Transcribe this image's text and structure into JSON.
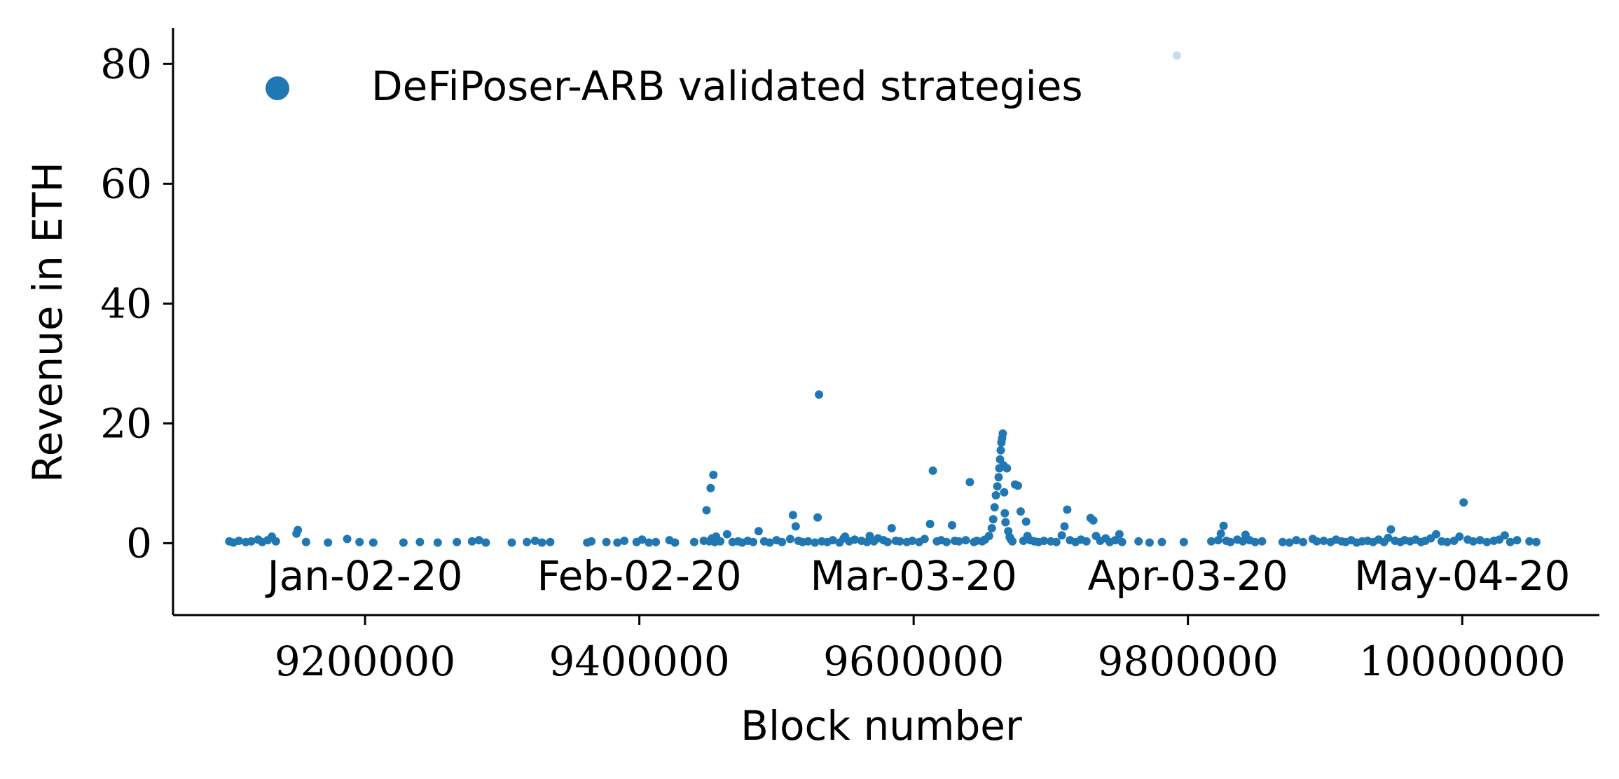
{
  "chart_data": {
    "type": "scatter",
    "xlabel": "Block number",
    "ylabel": "Revenue in ETH",
    "xlim": [
      9060000,
      10100000
    ],
    "ylim": [
      -12,
      86
    ],
    "x_ticks": [
      9200000,
      9400000,
      9600000,
      9800000,
      10000000
    ],
    "x_tick_labels": [
      "9200000",
      "9400000",
      "9600000",
      "9800000",
      "10000000"
    ],
    "y_ticks": [
      0,
      20,
      40,
      60,
      80
    ],
    "y_tick_labels": [
      "0",
      "20",
      "40",
      "60",
      "80"
    ],
    "date_labels": [
      {
        "label": "Jan-02-20",
        "x": 9200000
      },
      {
        "label": "Feb-02-20",
        "x": 9400000
      },
      {
        "label": "Mar-03-20",
        "x": 9600000
      },
      {
        "label": "Apr-03-20",
        "x": 9800000
      },
      {
        "label": "May-04-20",
        "x": 10000000
      }
    ],
    "grid": false,
    "legend_position": "top-left",
    "color": "#1f77b4",
    "series": [
      {
        "name": "DeFiPoser-ARB validated strategies",
        "points": [
          [
            9101000,
            0.3
          ],
          [
            9104000,
            0.1
          ],
          [
            9108000,
            0.4
          ],
          [
            9113000,
            0.2
          ],
          [
            9117000,
            0.3
          ],
          [
            9122000,
            0.6
          ],
          [
            9125000,
            0.2
          ],
          [
            9129000,
            0.5
          ],
          [
            9132000,
            1.1
          ],
          [
            9135000,
            0.3
          ],
          [
            9150000,
            1.6
          ],
          [
            9151000,
            2.2
          ],
          [
            9157000,
            0.2
          ],
          [
            9173000,
            0.1
          ],
          [
            9187000,
            0.7
          ],
          [
            9196000,
            0.2
          ],
          [
            9206000,
            0.1
          ],
          [
            9228000,
            0.1
          ],
          [
            9240000,
            0.2
          ],
          [
            9253000,
            0.1
          ],
          [
            9267000,
            0.2
          ],
          [
            9278000,
            0.3
          ],
          [
            9283000,
            0.5
          ],
          [
            9288000,
            0.1
          ],
          [
            9307000,
            0.1
          ],
          [
            9318000,
            0.2
          ],
          [
            9324000,
            0.4
          ],
          [
            9329000,
            0.1
          ],
          [
            9335000,
            0.2
          ],
          [
            9362000,
            0.1
          ],
          [
            9365000,
            0.3
          ],
          [
            9376000,
            0.2
          ],
          [
            9384000,
            0.1
          ],
          [
            9389000,
            0.4
          ],
          [
            9398000,
            0.2
          ],
          [
            9402000,
            0.6
          ],
          [
            9407000,
            0.1
          ],
          [
            9412000,
            0.2
          ],
          [
            9422000,
            0.5
          ],
          [
            9426000,
            0.1
          ],
          [
            9440000,
            0.2
          ],
          [
            9447000,
            0.4
          ],
          [
            9449000,
            5.5
          ],
          [
            9451000,
            0.3
          ],
          [
            9452000,
            9.2
          ],
          [
            9453000,
            0.8
          ],
          [
            9454000,
            11.4
          ],
          [
            9455000,
            0.2
          ],
          [
            9456000,
            1.1
          ],
          [
            9459000,
            0.3
          ],
          [
            9464000,
            1.5
          ],
          [
            9468000,
            0.2
          ],
          [
            9472000,
            0.3
          ],
          [
            9475000,
            0.1
          ],
          [
            9479000,
            0.4
          ],
          [
            9483000,
            0.2
          ],
          [
            9487000,
            2.0
          ],
          [
            9491000,
            0.3
          ],
          [
            9495000,
            0.1
          ],
          [
            9500000,
            0.5
          ],
          [
            9504000,
            0.2
          ],
          [
            9510000,
            0.7
          ],
          [
            9512000,
            4.7
          ],
          [
            9514000,
            2.8
          ],
          [
            9516000,
            0.4
          ],
          [
            9519000,
            0.2
          ],
          [
            9523000,
            0.3
          ],
          [
            9528000,
            0.1
          ],
          [
            9530000,
            4.3
          ],
          [
            9531000,
            24.8
          ],
          [
            9533000,
            0.3
          ],
          [
            9537000,
            0.2
          ],
          [
            9541000,
            0.5
          ],
          [
            9546000,
            0.1
          ],
          [
            9549000,
            0.8
          ],
          [
            9550000,
            1.1
          ],
          [
            9553000,
            0.3
          ],
          [
            9557000,
            0.6
          ],
          [
            9562000,
            0.4
          ],
          [
            9566000,
            0.2
          ],
          [
            9568000,
            1.2
          ],
          [
            9571000,
            0.3
          ],
          [
            9574000,
            0.8
          ],
          [
            9578000,
            0.5
          ],
          [
            9581000,
            0.2
          ],
          [
            9584000,
            2.5
          ],
          [
            9587000,
            0.4
          ],
          [
            9590000,
            0.3
          ],
          [
            9595000,
            0.2
          ],
          [
            9599000,
            0.4
          ],
          [
            9604000,
            0.2
          ],
          [
            9608000,
            0.7
          ],
          [
            9612000,
            3.2
          ],
          [
            9614000,
            12.1
          ],
          [
            9617000,
            0.3
          ],
          [
            9620000,
            0.5
          ],
          [
            9624000,
            0.2
          ],
          [
            9628000,
            3.0
          ],
          [
            9630000,
            0.4
          ],
          [
            9633000,
            0.3
          ],
          [
            9638000,
            0.5
          ],
          [
            9641000,
            10.2
          ],
          [
            9644000,
            0.2
          ],
          [
            9646000,
            0.4
          ],
          [
            9650000,
            0.3
          ],
          [
            9652000,
            0.6
          ],
          [
            9655000,
            1.2
          ],
          [
            9657000,
            2.5
          ],
          [
            9658000,
            4.0
          ],
          [
            9659000,
            6.0
          ],
          [
            9660000,
            8.0
          ],
          [
            9661000,
            9.5
          ],
          [
            9662000,
            11.0
          ],
          [
            9662500,
            12.5
          ],
          [
            9663000,
            14.0
          ],
          [
            9663500,
            15.5
          ],
          [
            9664000,
            16.8
          ],
          [
            9664500,
            17.5
          ],
          [
            9665000,
            18.3
          ],
          [
            9665500,
            13.0
          ],
          [
            9666000,
            8.5
          ],
          [
            9666500,
            5.0
          ],
          [
            9667000,
            3.5
          ],
          [
            9668000,
            12.5
          ],
          [
            9669000,
            2.0
          ],
          [
            9670000,
            1.0
          ],
          [
            9671000,
            0.6
          ],
          [
            9672000,
            0.3
          ],
          [
            9674000,
            9.8
          ],
          [
            9676000,
            9.6
          ],
          [
            9678000,
            5.3
          ],
          [
            9680000,
            0.4
          ],
          [
            9682000,
            3.6
          ],
          [
            9683000,
            1.2
          ],
          [
            9685000,
            0.5
          ],
          [
            9688000,
            0.3
          ],
          [
            9691000,
            0.2
          ],
          [
            9695000,
            0.4
          ],
          [
            9700000,
            0.3
          ],
          [
            9704000,
            0.2
          ],
          [
            9708000,
            1.3
          ],
          [
            9710000,
            2.8
          ],
          [
            9712000,
            5.6
          ],
          [
            9714000,
            0.5
          ],
          [
            9718000,
            0.2
          ],
          [
            9722000,
            0.6
          ],
          [
            9726000,
            0.3
          ],
          [
            9729000,
            4.2
          ],
          [
            9731000,
            3.8
          ],
          [
            9733000,
            1.2
          ],
          [
            9736000,
            0.4
          ],
          [
            9740000,
            0.8
          ],
          [
            9743000,
            0.2
          ],
          [
            9747000,
            0.5
          ],
          [
            9750000,
            1.5
          ],
          [
            9752000,
            0.2
          ],
          [
            9764000,
            0.3
          ],
          [
            9772000,
            0.1
          ],
          [
            9781000,
            0.2
          ],
          [
            9792000,
            81.4
          ],
          [
            9797000,
            0.2
          ],
          [
            9817000,
            0.3
          ],
          [
            9822000,
            0.5
          ],
          [
            9824000,
            1.6
          ],
          [
            9826000,
            2.9
          ],
          [
            9828000,
            0.4
          ],
          [
            9831000,
            0.2
          ],
          [
            9836000,
            0.6
          ],
          [
            9840000,
            0.3
          ],
          [
            9842000,
            1.4
          ],
          [
            9845000,
            0.5
          ],
          [
            9849000,
            0.2
          ],
          [
            9854000,
            0.3
          ],
          [
            9869000,
            0.2
          ],
          [
            9874000,
            0.1
          ],
          [
            9879000,
            0.5
          ],
          [
            9884000,
            0.2
          ],
          [
            9891000,
            0.7
          ],
          [
            9894000,
            0.3
          ],
          [
            9899000,
            0.4
          ],
          [
            9904000,
            0.2
          ],
          [
            9908000,
            0.6
          ],
          [
            9912000,
            0.3
          ],
          [
            9915000,
            0.2
          ],
          [
            9919000,
            0.5
          ],
          [
            9923000,
            0.1
          ],
          [
            9927000,
            0.3
          ],
          [
            9931000,
            0.4
          ],
          [
            9935000,
            0.2
          ],
          [
            9939000,
            0.6
          ],
          [
            9943000,
            0.2
          ],
          [
            9946000,
            0.9
          ],
          [
            9948000,
            2.3
          ],
          [
            9951000,
            0.4
          ],
          [
            9955000,
            0.2
          ],
          [
            9958000,
            0.5
          ],
          [
            9962000,
            0.3
          ],
          [
            9966000,
            0.6
          ],
          [
            9970000,
            0.2
          ],
          [
            9973000,
            0.4
          ],
          [
            9977000,
            0.8
          ],
          [
            9981000,
            1.5
          ],
          [
            9985000,
            0.3
          ],
          [
            9989000,
            0.2
          ],
          [
            9994000,
            0.4
          ],
          [
            9998000,
            1.1
          ],
          [
            10001000,
            6.8
          ],
          [
            10004000,
            0.6
          ],
          [
            10008000,
            0.3
          ],
          [
            10013000,
            0.5
          ],
          [
            10018000,
            0.2
          ],
          [
            10023000,
            0.4
          ],
          [
            10027000,
            0.6
          ],
          [
            10031000,
            1.3
          ],
          [
            10035000,
            0.2
          ],
          [
            10040000,
            0.5
          ],
          [
            10049000,
            0.3
          ],
          [
            10054000,
            0.2
          ]
        ]
      }
    ]
  }
}
